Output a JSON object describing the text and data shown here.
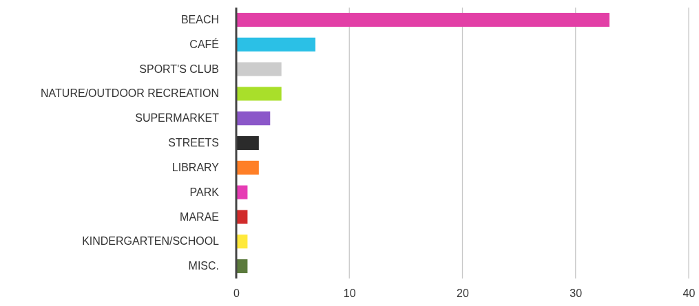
{
  "chart_data": {
    "type": "bar",
    "orientation": "horizontal",
    "categories": [
      "BEACH",
      "CAFÉ",
      "SPORT'S CLUB",
      "NATURE/OUTDOOR RECREATION",
      "SUPERMARKET",
      "STREETS",
      "LIBRARY",
      "PARK",
      "MARAE",
      "KINDERGARTEN/SCHOOL",
      "MISC."
    ],
    "values": [
      33,
      7,
      4,
      4,
      3,
      2,
      2,
      1,
      1,
      1,
      1
    ],
    "colors": [
      "#e23fa6",
      "#2bc0e6",
      "#cccccc",
      "#a9df2a",
      "#8b57c9",
      "#2b2b2b",
      "#ff7f27",
      "#e63cb4",
      "#d12b2b",
      "#ffe93b",
      "#5b7a3c"
    ],
    "xlim": [
      0,
      40
    ],
    "xticks": [
      0,
      10,
      20,
      30,
      40
    ],
    "grid": "x"
  }
}
